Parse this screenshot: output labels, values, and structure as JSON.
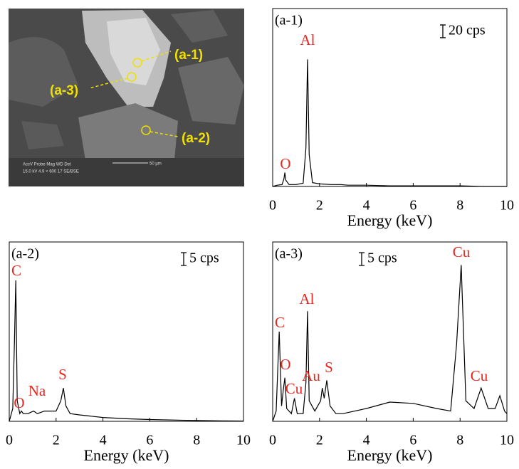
{
  "image": {
    "markers": [
      "(a-1)",
      "(a-3)",
      "(a-2)"
    ],
    "info_header": "AccV  Probe  Mag   WD  Det",
    "info_values": "15.0 kV  4.9   × 600   17  SE/BSE",
    "scale_label": "50 µm"
  },
  "chart_data": [
    {
      "type": "line",
      "title": "(a-1)",
      "xlabel": "Energy (keV)",
      "xlim": [
        0,
        10
      ],
      "xticks": [
        0,
        2,
        4,
        6,
        8,
        10
      ],
      "ylim": [
        0,
        280
      ],
      "scale_bar": {
        "value": 20,
        "label": "20 cps"
      },
      "label_color": "#e8261f",
      "annotations": [
        "O",
        "Al"
      ],
      "series": [
        {
          "color": "#000000",
          "x": [
            0,
            0.2,
            0.4,
            0.48,
            0.52,
            0.56,
            0.7,
            1.0,
            1.3,
            1.42,
            1.49,
            1.56,
            1.7,
            2.0,
            2.5,
            2.9,
            3.2,
            4,
            5,
            6,
            7,
            8,
            9,
            10
          ],
          "values": [
            0,
            2,
            3,
            12,
            22,
            10,
            3,
            3,
            5,
            60,
            200,
            50,
            6,
            4,
            3,
            3,
            2,
            2,
            1,
            1,
            1,
            1,
            0,
            0
          ]
        }
      ]
    },
    {
      "type": "line",
      "title": "(a-2)",
      "xlabel": "Energy (keV)",
      "xlim": [
        0,
        10
      ],
      "xticks": [
        0,
        2,
        4,
        6,
        8,
        10
      ],
      "ylim": [
        0,
        70
      ],
      "scale_bar": {
        "value": 5,
        "label": "5 cps"
      },
      "label_color": "#e8261f",
      "annotations": [
        "C",
        "O",
        "Na",
        "S"
      ],
      "series": [
        {
          "color": "#000000",
          "x": [
            0,
            0.15,
            0.22,
            0.28,
            0.34,
            0.45,
            0.52,
            0.6,
            0.8,
            1.04,
            1.2,
            1.5,
            2.0,
            2.2,
            2.31,
            2.42,
            2.6,
            3,
            4,
            5,
            6,
            7,
            8,
            9,
            10
          ],
          "values": [
            0,
            5,
            30,
            55,
            8,
            3,
            4,
            3,
            3,
            4,
            3,
            4,
            4,
            8,
            13,
            6,
            3,
            2.5,
            1.5,
            1,
            0.7,
            0.5,
            0.3,
            0.2,
            0.1
          ]
        }
      ]
    },
    {
      "type": "line",
      "title": "(a-3)",
      "xlabel": "Energy (keV)",
      "xlim": [
        0,
        10
      ],
      "xticks": [
        0,
        2,
        4,
        6,
        8,
        10
      ],
      "ylim": [
        0,
        70
      ],
      "scale_bar": {
        "value": 5,
        "label": "5 cps"
      },
      "label_color": "#e8261f",
      "annotations": [
        "C",
        "O",
        "Cu",
        "Al",
        "Au",
        "S",
        "Cu",
        "Cu"
      ],
      "series": [
        {
          "color": "#000000",
          "x": [
            0,
            0.15,
            0.28,
            0.38,
            0.45,
            0.52,
            0.6,
            0.8,
            0.93,
            1.05,
            1.3,
            1.42,
            1.49,
            1.56,
            1.8,
            2.05,
            2.12,
            2.2,
            2.31,
            2.45,
            2.7,
            3,
            4,
            5,
            6,
            7,
            7.6,
            7.85,
            8.05,
            8.25,
            8.6,
            8.9,
            9.2,
            9.5,
            9.7,
            9.9,
            10
          ],
          "values": [
            0,
            4,
            35,
            6,
            12,
            17,
            5,
            3,
            9,
            3,
            3,
            15,
            43,
            8,
            4,
            8,
            13,
            9,
            16,
            6,
            3,
            3,
            5,
            7.5,
            7,
            5,
            4,
            30,
            61,
            8,
            5,
            13,
            5,
            5,
            10,
            4,
            3
          ]
        }
      ]
    }
  ]
}
